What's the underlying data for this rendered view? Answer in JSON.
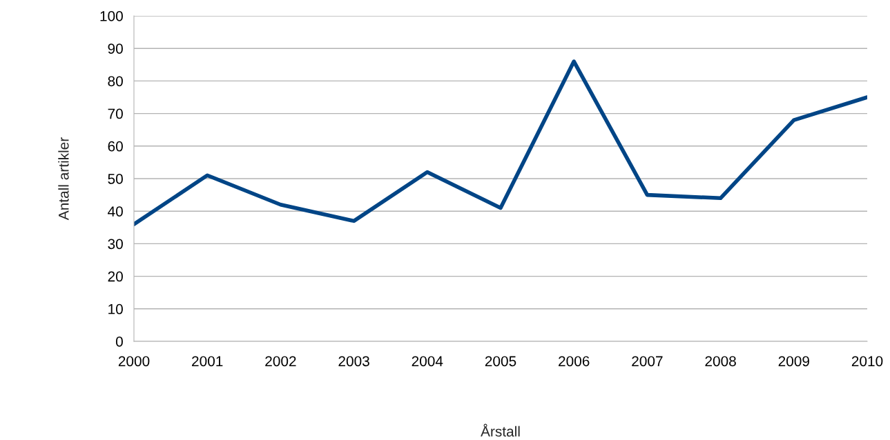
{
  "chart_data": {
    "type": "line",
    "xlabel": "Årstall",
    "ylabel": "Antall artikler",
    "x": [
      2000,
      2001,
      2002,
      2003,
      2004,
      2005,
      2006,
      2007,
      2008,
      2009,
      2010
    ],
    "series": [
      {
        "color": "#004586",
        "values": [
          36,
          51,
          42,
          37,
          52,
          41,
          86,
          45,
          44,
          68,
          75
        ]
      }
    ],
    "xlim": [
      2000,
      2010
    ],
    "xticks": [
      2000,
      2001,
      2002,
      2003,
      2004,
      2005,
      2006,
      2007,
      2008,
      2009,
      2010
    ],
    "ylim": [
      0,
      100
    ],
    "yticks": [
      0,
      10,
      20,
      30,
      40,
      50,
      60,
      70,
      80,
      90,
      100
    ],
    "grid": "y",
    "marker": "none",
    "line_style": "solid"
  }
}
